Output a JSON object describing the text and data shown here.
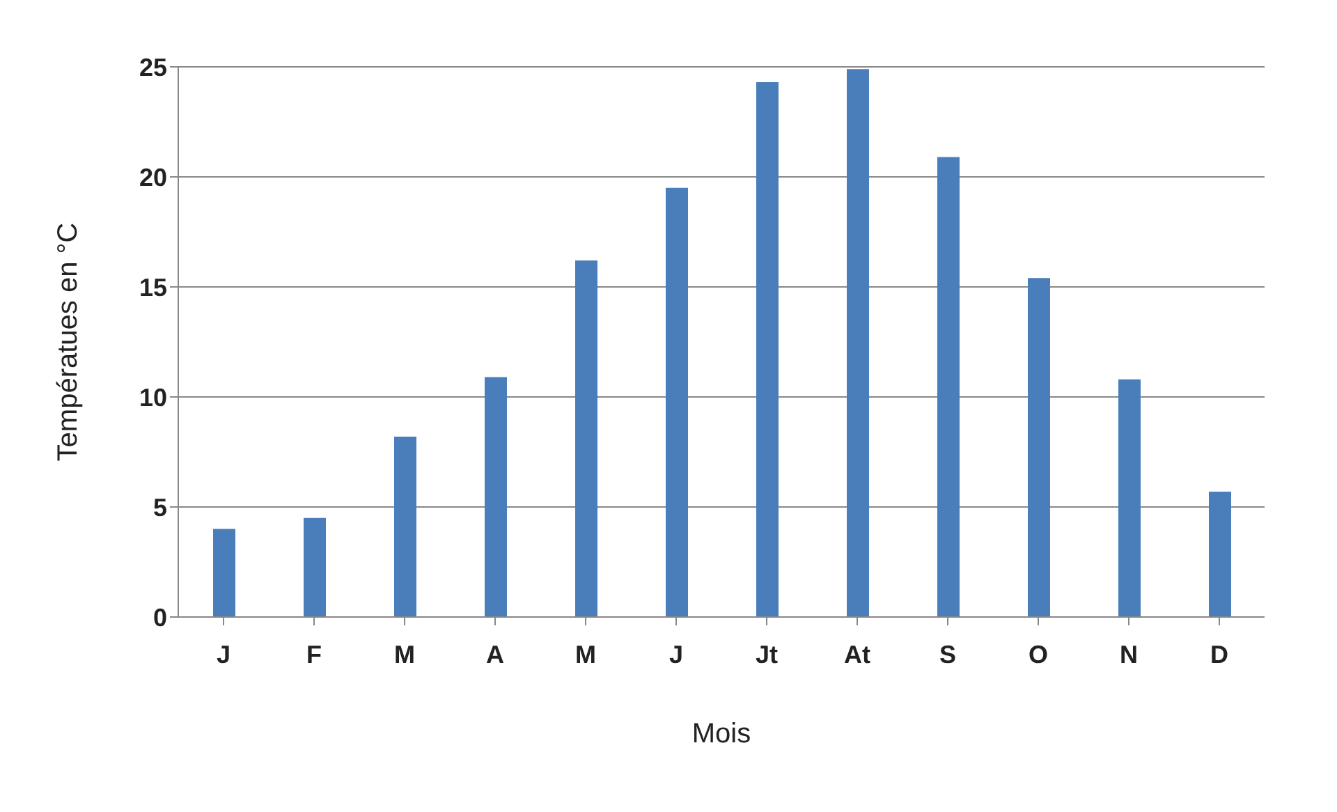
{
  "chart_data": {
    "type": "bar",
    "xlabel": "Mois",
    "ylabel": "Températues en °C",
    "categories": [
      "J",
      "F",
      "M",
      "A",
      "M",
      "J",
      "Jt",
      "At",
      "S",
      "O",
      "N",
      "D"
    ],
    "values": [
      4,
      4.5,
      8.2,
      10.9,
      16.2,
      19.5,
      24.3,
      24.9,
      20.9,
      15.4,
      10.8,
      5.7
    ],
    "color": "#4a7ebb",
    "ylim": [
      0,
      25
    ],
    "yticks": [
      0,
      5,
      10,
      15,
      20,
      25
    ],
    "grid": "y"
  }
}
